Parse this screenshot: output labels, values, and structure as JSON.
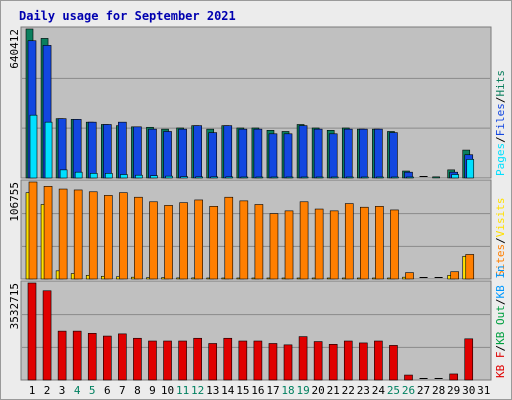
{
  "title": "Daily usage for September 2021",
  "colors": {
    "hits": "#0b7f5e",
    "files": "#1247e0",
    "pages": "#00e0ff",
    "visits": "#ffe000",
    "sites": "#ff7f00",
    "kb_in": "#0099ff",
    "kb_out": "#00a040",
    "kb_f": "#e00000",
    "weekend_tick": "#008060",
    "panel_bg": "#c0c0c0",
    "title": "#0000b0"
  },
  "chart_data": [
    {
      "type": "bar",
      "panel": "hits-files-pages",
      "max_label": "640412",
      "ylim": [
        0,
        640412
      ],
      "legend": {
        "pages": "Pages",
        "files": "Files",
        "hits": "Hits",
        "sep": "/"
      },
      "categories": [
        "1",
        "2",
        "3",
        "4",
        "5",
        "6",
        "7",
        "8",
        "9",
        "10",
        "11",
        "12",
        "13",
        "14",
        "15",
        "16",
        "17",
        "18",
        "19",
        "20",
        "21",
        "22",
        "23",
        "24",
        "25",
        "26",
        "27",
        "28",
        "29",
        "30",
        "31"
      ],
      "series": [
        {
          "name": "Hits",
          "values": [
            640412,
            600000,
            255000,
            252000,
            240000,
            230000,
            225000,
            220000,
            218000,
            210000,
            215000,
            225000,
            210000,
            225000,
            215000,
            215000,
            205000,
            200000,
            230000,
            215000,
            205000,
            215000,
            210000,
            210000,
            200000,
            30000,
            0,
            5000,
            35000,
            120000,
            0
          ]
        },
        {
          "name": "Files",
          "values": [
            590000,
            570000,
            255000,
            252000,
            240000,
            230000,
            240000,
            220000,
            210000,
            200000,
            210000,
            225000,
            195000,
            225000,
            210000,
            210000,
            190000,
            190000,
            225000,
            210000,
            190000,
            210000,
            210000,
            210000,
            195000,
            25000,
            0,
            0,
            25000,
            100000,
            0
          ]
        },
        {
          "name": "Pages",
          "values": [
            270000,
            240000,
            35000,
            25000,
            20000,
            20000,
            15000,
            12000,
            10000,
            8000,
            6000,
            5000,
            5000,
            5000,
            4000,
            4000,
            3000,
            3000,
            3000,
            3000,
            3000,
            3000,
            3000,
            3000,
            3000,
            1000,
            0,
            0,
            15000,
            80000,
            0
          ]
        }
      ]
    },
    {
      "type": "bar",
      "panel": "visits-sites",
      "max_label": "106755",
      "ylim": [
        0,
        106755
      ],
      "legend": {
        "sites": "Sites",
        "visits": "Visits",
        "sep": "/"
      },
      "categories": [
        "1",
        "2",
        "3",
        "4",
        "5",
        "6",
        "7",
        "8",
        "9",
        "10",
        "11",
        "12",
        "13",
        "14",
        "15",
        "16",
        "17",
        "18",
        "19",
        "20",
        "21",
        "22",
        "23",
        "24",
        "25",
        "26",
        "27",
        "28",
        "29",
        "30",
        "31"
      ],
      "series": [
        {
          "name": "Visits",
          "values": [
            95000,
            82000,
            9000,
            6000,
            4000,
            3000,
            2500,
            2000,
            1500,
            1500,
            1200,
            1200,
            1000,
            1000,
            1000,
            1000,
            1000,
            1000,
            1000,
            1000,
            1000,
            1000,
            1000,
            1000,
            1000,
            2000,
            0,
            0,
            4000,
            25000,
            0
          ]
        },
        {
          "name": "Sites",
          "values": [
            106755,
            102000,
            99000,
            98000,
            96000,
            92000,
            95000,
            90000,
            85000,
            81000,
            84000,
            87000,
            80000,
            90000,
            86000,
            82000,
            72000,
            75000,
            85000,
            77000,
            75000,
            83000,
            79000,
            80000,
            76000,
            7000,
            0,
            0,
            8000,
            27000,
            0
          ]
        }
      ]
    },
    {
      "type": "bar",
      "panel": "kbytes",
      "max_label": "3532715",
      "ylim": [
        0,
        3532715
      ],
      "legend": {
        "kb_in": "KB In",
        "kb_out": "KB Out",
        "kb_f": "KB F",
        "sep": "/"
      },
      "categories": [
        "1",
        "2",
        "3",
        "4",
        "5",
        "6",
        "7",
        "8",
        "9",
        "10",
        "11",
        "12",
        "13",
        "14",
        "15",
        "16",
        "17",
        "18",
        "19",
        "20",
        "21",
        "22",
        "23",
        "24",
        "25",
        "26",
        "27",
        "28",
        "29",
        "30",
        "31"
      ],
      "series": [
        {
          "name": "KB F",
          "values": [
            3532715,
            3250000,
            1780000,
            1780000,
            1700000,
            1600000,
            1680000,
            1520000,
            1420000,
            1420000,
            1420000,
            1520000,
            1330000,
            1520000,
            1420000,
            1420000,
            1330000,
            1280000,
            1580000,
            1400000,
            1300000,
            1420000,
            1350000,
            1420000,
            1260000,
            180000,
            0,
            0,
            220000,
            1500000,
            0
          ]
        }
      ]
    }
  ]
}
